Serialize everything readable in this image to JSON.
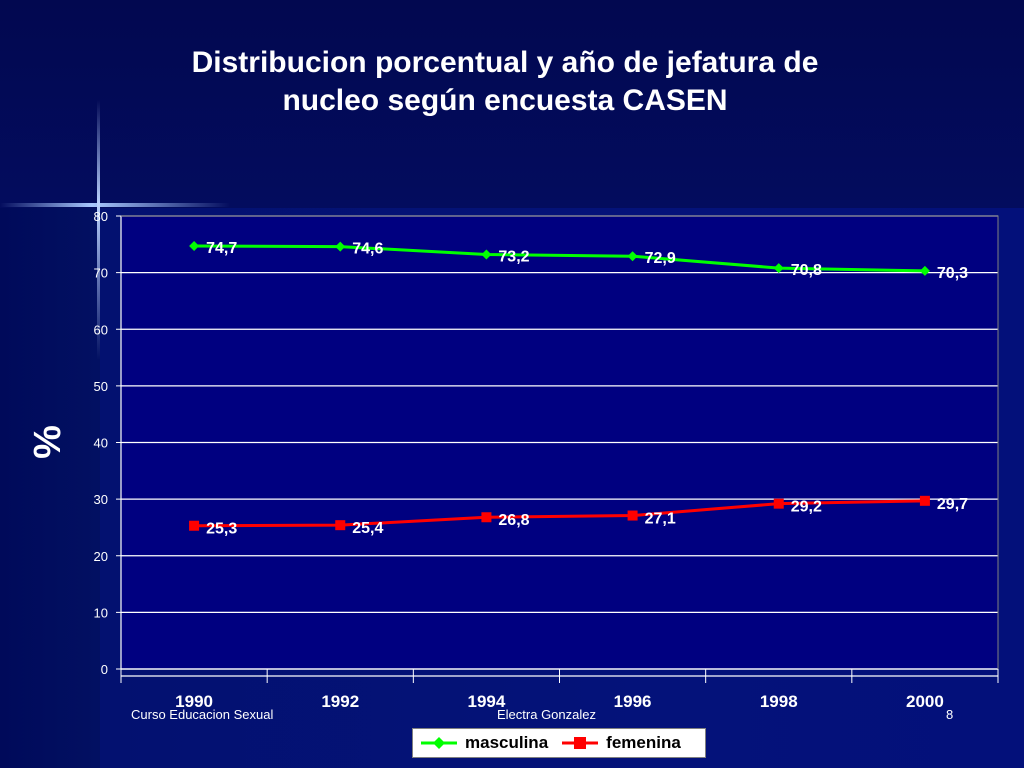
{
  "slide": {
    "title_line1": "Distribucion porcentual y año de jefatura de",
    "title_line2": "nucleo según encuesta CASEN",
    "footer_left": "Curso Educacion Sexual",
    "footer_center": "Electra Gonzalez",
    "footer_right": "8"
  },
  "colors": {
    "plot_bg": "#000080",
    "masculina": "#00ff00",
    "femenina": "#ff0000"
  },
  "chart_data": {
    "type": "line",
    "title": "",
    "xlabel": "",
    "ylabel": "%",
    "categories": [
      "1990",
      "1992",
      "1994",
      "1996",
      "1998",
      "2000"
    ],
    "ylim": [
      0,
      80
    ],
    "yticks": [
      "0",
      "10",
      "20",
      "30",
      "40",
      "50",
      "60",
      "70",
      "80"
    ],
    "grid": true,
    "legend_position": "bottom",
    "series": [
      {
        "name": "masculina",
        "values": [
          74.7,
          74.6,
          73.2,
          72.9,
          70.8,
          70.3
        ],
        "labels": [
          "74,7",
          "74,6",
          "73,2",
          "72,9",
          "70,8",
          "70,3"
        ],
        "marker": "diamond"
      },
      {
        "name": "femenina",
        "values": [
          25.3,
          25.4,
          26.8,
          27.1,
          29.2,
          29.7
        ],
        "labels": [
          "25,3",
          "25,4",
          "26,8",
          "27,1",
          "29,2",
          "29,7"
        ],
        "marker": "square"
      }
    ]
  }
}
